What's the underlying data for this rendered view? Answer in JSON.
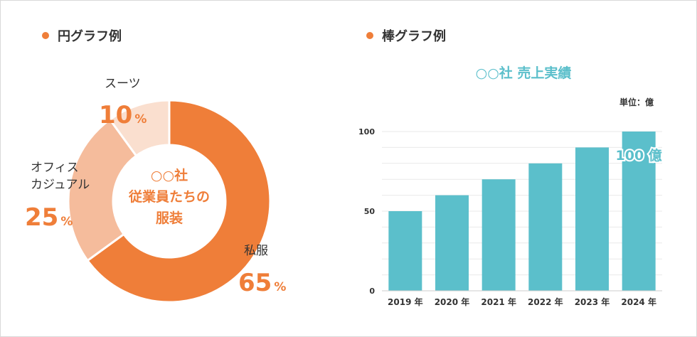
{
  "colors": {
    "accent_orange": "#ef7e39",
    "accent_teal": "#5bbfcb",
    "pie_slices": [
      "#ef7e39",
      "#f5bc9c",
      "#fadfcf"
    ],
    "text_dark": "#333333",
    "grid": "#e9e9e9"
  },
  "headings": {
    "pie": "円グラフ例",
    "bar": "棒グラフ例"
  },
  "chart_data": [
    {
      "type": "pie",
      "title": "",
      "center_label": [
        "○○社",
        "従業員たちの",
        "服装"
      ],
      "slices": [
        {
          "label": [
            "私服"
          ],
          "value": 65,
          "value_text": "65",
          "unit": "%"
        },
        {
          "label": [
            "オフィス",
            "カジュアル"
          ],
          "value": 25,
          "value_text": "25",
          "unit": "%"
        },
        {
          "label": [
            "スーツ"
          ],
          "value": 10,
          "value_text": "10",
          "unit": "%"
        }
      ]
    },
    {
      "type": "bar",
      "title": "○○社 売上実績",
      "unit_label": "単位：億",
      "categories": [
        "2019 年",
        "2020 年",
        "2021 年",
        "2022 年",
        "2023 年",
        "2024 年"
      ],
      "values": [
        50,
        60,
        70,
        80,
        90,
        100
      ],
      "ylim": [
        0,
        100
      ],
      "yticks": [
        0,
        50,
        100
      ],
      "grid": true,
      "annotation": {
        "category_index": 5,
        "text": "100 億"
      }
    }
  ]
}
